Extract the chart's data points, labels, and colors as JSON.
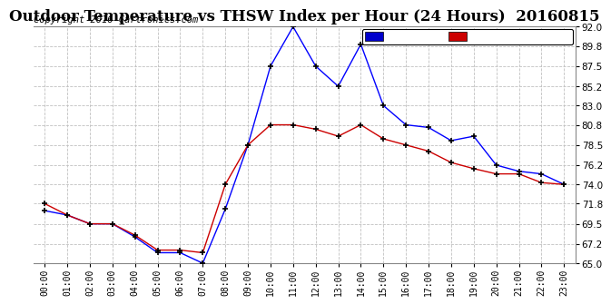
{
  "title": "Outdoor Temperature vs THSW Index per Hour (24 Hours)  20160815",
  "copyright": "Copyright 2016 Cartronics.com",
  "hours": [
    "00:00",
    "01:00",
    "02:00",
    "03:00",
    "04:00",
    "05:00",
    "06:00",
    "07:00",
    "08:00",
    "09:00",
    "10:00",
    "11:00",
    "12:00",
    "13:00",
    "14:00",
    "15:00",
    "16:00",
    "17:00",
    "18:00",
    "19:00",
    "20:00",
    "21:00",
    "22:00",
    "23:00"
  ],
  "thsw": [
    71.0,
    70.5,
    69.5,
    69.5,
    68.0,
    66.2,
    66.2,
    65.0,
    71.2,
    78.5,
    87.5,
    92.0,
    87.5,
    85.2,
    90.0,
    83.0,
    80.8,
    80.5,
    79.0,
    79.5,
    76.2,
    75.5,
    75.2,
    74.0
  ],
  "temp": [
    71.8,
    70.5,
    69.5,
    69.5,
    68.2,
    66.5,
    66.5,
    66.2,
    74.0,
    78.5,
    80.8,
    80.8,
    80.3,
    79.5,
    80.8,
    79.2,
    78.5,
    77.8,
    76.5,
    75.8,
    75.2,
    75.2,
    74.2,
    74.0
  ],
  "thsw_color": "#0000ff",
  "temp_color": "#cc0000",
  "bg_color": "#ffffff",
  "grid_color": "#c0c0c0",
  "ylim": [
    65.0,
    92.0
  ],
  "yticks": [
    65.0,
    67.2,
    69.5,
    71.8,
    74.0,
    76.2,
    78.5,
    80.8,
    83.0,
    85.2,
    87.5,
    89.8,
    92.0
  ],
  "title_fontsize": 12,
  "copyright_fontsize": 7.5,
  "legend_thsw_bg": "#0000cc",
  "legend_temp_bg": "#cc0000"
}
